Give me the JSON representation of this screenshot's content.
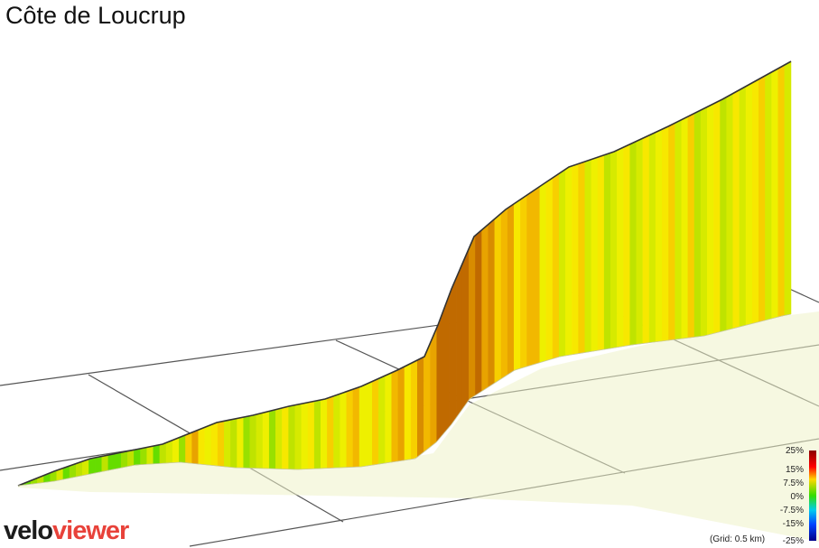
{
  "title": "Côte de Loucrup",
  "logo": {
    "part1": "velo",
    "part2": "viewer"
  },
  "legend": {
    "ticks": [
      "25%",
      "15%",
      "7.5%",
      "0%",
      "-7.5%",
      "-15%",
      "-25%"
    ],
    "grid_note": "(Grid: 0.5 km)"
  },
  "colors": {
    "profile_line": "#333333",
    "grid": "#555555"
  },
  "chart_data": {
    "type": "area",
    "title": "Côte de Loucrup",
    "description_unit_x": "fraction of climb",
    "grid": true,
    "x": [
      0.0,
      0.03,
      0.06,
      0.09,
      0.12,
      0.15,
      0.18,
      0.21,
      0.24,
      0.27,
      0.3,
      0.33,
      0.36,
      0.39,
      0.42,
      0.45,
      0.48,
      0.51,
      0.54,
      0.57,
      0.6,
      0.63,
      0.66,
      0.69,
      0.72,
      0.75,
      0.78,
      0.81,
      0.84,
      0.87,
      0.9,
      0.93,
      0.96,
      1.0
    ],
    "gradient_percent": [
      2,
      3,
      3,
      2,
      2,
      3,
      4,
      8,
      6,
      4,
      4,
      5,
      5,
      6,
      7,
      6,
      8,
      10,
      14,
      13,
      9,
      8,
      7,
      6,
      6,
      5,
      5,
      6,
      6,
      5,
      5,
      6,
      6,
      7
    ]
  }
}
